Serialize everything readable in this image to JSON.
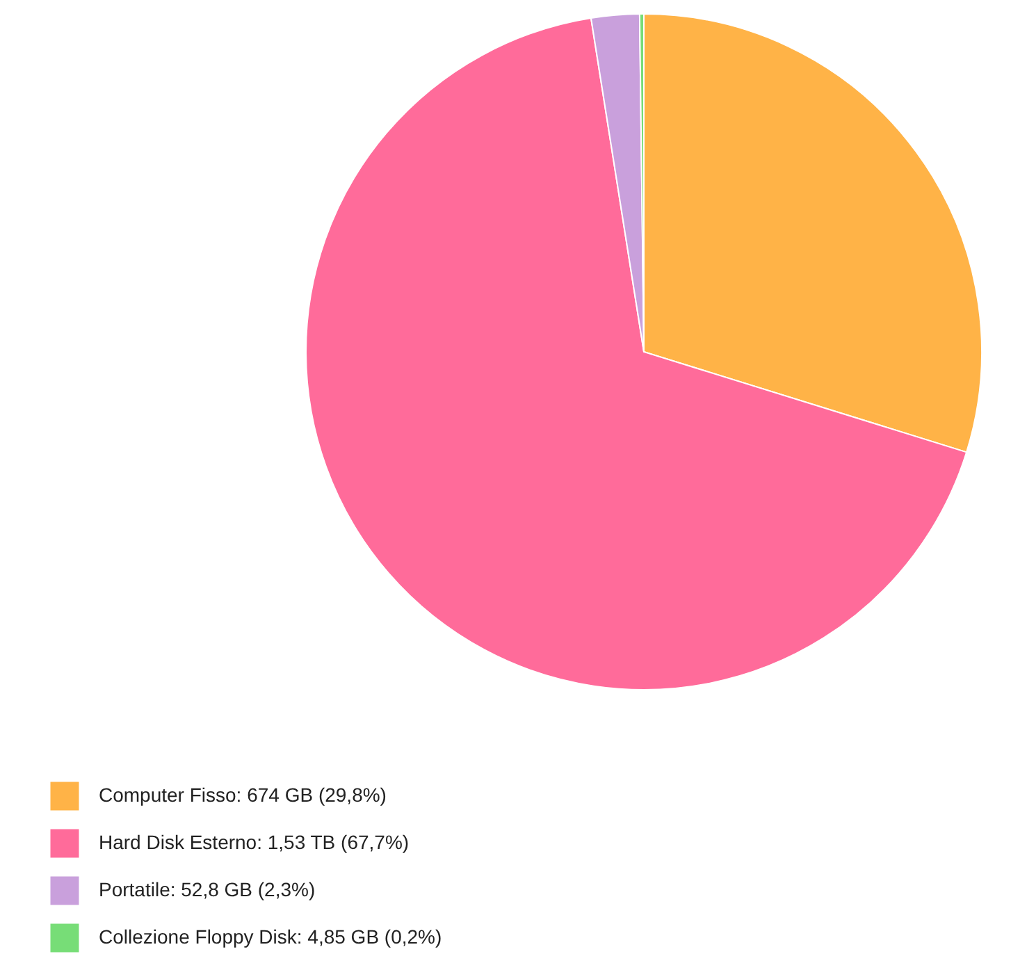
{
  "chart_data": {
    "type": "pie",
    "categories": [
      "Computer Fisso: 674 GB (29,8%)",
      "Hard Disk Esterno: 1,53 TB (67,7%)",
      "Portatile: 52,8 GB (2,3%)",
      "Collezione Floppy Disk: 4,85 GB (0,2%)"
    ],
    "values": [
      29.8,
      67.7,
      2.3,
      0.2
    ],
    "colors": [
      "#ffb347",
      "#ff6b9a",
      "#c9a0dc",
      "#77dd77"
    ],
    "legend": "bottom"
  }
}
